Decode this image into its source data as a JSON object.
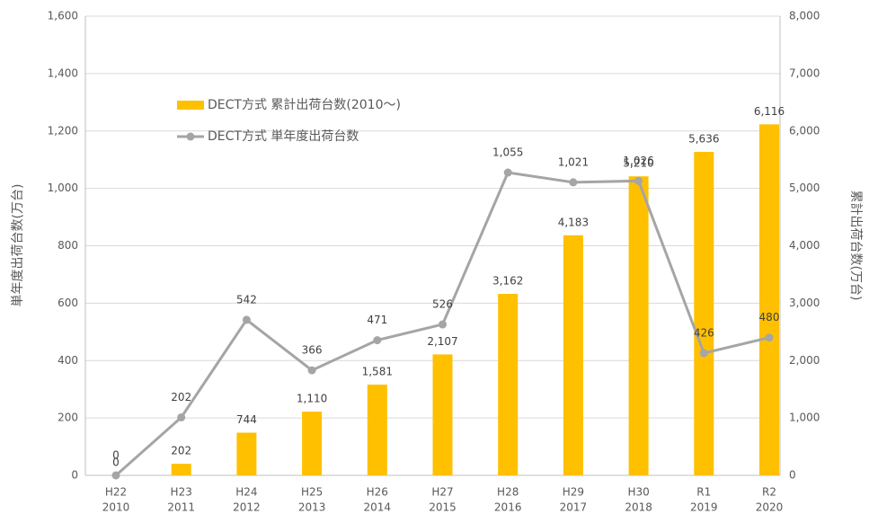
{
  "chart_data": {
    "type": "bar-line",
    "y_label": "単年度出荷台数(万台)",
    "y2_label": "累計出荷台数(万台)",
    "categories": [
      [
        "H22",
        "2010"
      ],
      [
        "H23",
        "2011"
      ],
      [
        "H24",
        "2012"
      ],
      [
        "H25",
        "2013"
      ],
      [
        "H26",
        "2014"
      ],
      [
        "H27",
        "2015"
      ],
      [
        "H28",
        "2016"
      ],
      [
        "H29",
        "2017"
      ],
      [
        "H30",
        "2018"
      ],
      [
        "R1",
        "2019"
      ],
      [
        "R2",
        "2020"
      ]
    ],
    "series": [
      {
        "name": "DECT方式 累計出荷台数(2010～)",
        "type": "bar",
        "axis": "y2",
        "color": "#ffc000",
        "values": [
          0,
          202,
          744,
          1110,
          1581,
          2107,
          3162,
          4183,
          5210,
          5636,
          6116
        ],
        "value_labels": [
          "0",
          "202",
          "744",
          "1,110",
          "1,581",
          "2,107",
          "3,162",
          "4,183",
          "5,210",
          "5,636",
          "6,116"
        ]
      },
      {
        "name": "DECT方式 単年度出荷台数",
        "type": "line",
        "axis": "y",
        "color": "#a5a5a5",
        "values": [
          0,
          202,
          542,
          366,
          471,
          526,
          1055,
          1021,
          1026,
          426,
          480
        ],
        "value_labels": [
          "0",
          "202",
          "542",
          "366",
          "471",
          "526",
          "1,055",
          "1,021",
          "1,026",
          "426",
          "480"
        ]
      }
    ],
    "ylim": [
      0,
      1600
    ],
    "yticks": [
      0,
      200,
      400,
      600,
      800,
      {
        "value": 1000,
        "label": "1,000"
      },
      {
        "value": 1200,
        "label": "1,200"
      },
      {
        "value": 1400,
        "label": "1,400"
      },
      {
        "value": 1600,
        "label": "1,600"
      }
    ],
    "y2lim": [
      0,
      8000
    ],
    "y2ticks": [
      0,
      {
        "value": 1000,
        "label": "1,000"
      },
      {
        "value": 2000,
        "label": "2,000"
      },
      {
        "value": 3000,
        "label": "3,000"
      },
      {
        "value": 4000,
        "label": "4,000"
      },
      {
        "value": 5000,
        "label": "5,000"
      },
      {
        "value": 6000,
        "label": "6,000"
      },
      {
        "value": 7000,
        "label": "7,000"
      },
      {
        "value": 8000,
        "label": "8,000"
      }
    ],
    "grid": true
  }
}
